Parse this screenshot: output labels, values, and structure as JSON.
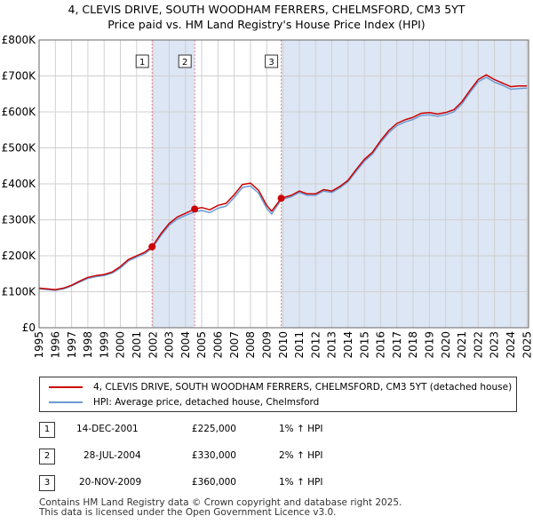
{
  "title_line1": "4, CLEVIS DRIVE, SOUTH WOODHAM FERRERS, CHELMSFORD, CM3 5YT",
  "title_line2": "Price paid vs. HM Land Registry's House Price Index (HPI)",
  "colors": {
    "price_line": "#cc0000",
    "hpi_line": "#6b9ad4",
    "shade": "#dde6f4",
    "vline": "#e88080"
  },
  "chart_data": {
    "type": "line",
    "title": "Price paid vs. HM Land Registry's House Price Index (HPI)",
    "xlabel": "",
    "ylabel": "",
    "xlim": [
      1995,
      2025.1
    ],
    "ylim": [
      0,
      800000
    ],
    "y_ticks": [
      0,
      100000,
      200000,
      300000,
      400000,
      500000,
      600000,
      700000,
      800000
    ],
    "y_tick_labels": [
      "£0",
      "£100K",
      "£200K",
      "£300K",
      "£400K",
      "£500K",
      "£600K",
      "£700K",
      "£800K"
    ],
    "x_ticks": [
      1995,
      1996,
      1997,
      1998,
      1999,
      2000,
      2001,
      2002,
      2003,
      2004,
      2005,
      2006,
      2007,
      2008,
      2009,
      2010,
      2011,
      2012,
      2013,
      2014,
      2015,
      2016,
      2017,
      2018,
      2019,
      2020,
      2021,
      2022,
      2023,
      2024,
      2025
    ],
    "x_tick_labels": [
      "1995",
      "1996",
      "1997",
      "1998",
      "1999",
      "2000",
      "2001",
      "2002",
      "2003",
      "2004",
      "2005",
      "2006",
      "2007",
      "2008",
      "2009",
      "2010",
      "2011",
      "2012",
      "2013",
      "2014",
      "2015",
      "2016",
      "2017",
      "2018",
      "2019",
      "2020",
      "2021",
      "2022",
      "2023",
      "2024",
      "2025"
    ],
    "grid": true,
    "shaded_ranges": [
      [
        2001.95,
        2004.57
      ],
      [
        2009.89,
        2025.1
      ]
    ],
    "series": [
      {
        "name": "4, CLEVIS DRIVE, SOUTH WOODHAM FERRERS, CHELMSFORD, CM3 5YT (detached house)",
        "x": [
          1995,
          1995.5,
          1996,
          1996.5,
          1997,
          1997.5,
          1998,
          1998.5,
          1999,
          1999.5,
          2000,
          2000.5,
          2001,
          2001.5,
          2001.95,
          2002.5,
          2003,
          2003.5,
          2004,
          2004.57,
          2005,
          2005.5,
          2006,
          2006.5,
          2007,
          2007.5,
          2008,
          2008.5,
          2009,
          2009.3,
          2009.89,
          2010.5,
          2011,
          2011.5,
          2012,
          2012.5,
          2013,
          2013.5,
          2014,
          2014.5,
          2015,
          2015.5,
          2016,
          2016.5,
          2017,
          2017.5,
          2018,
          2018.5,
          2019,
          2019.5,
          2020,
          2020.5,
          2021,
          2021.5,
          2022,
          2022.5,
          2023,
          2023.5,
          2024,
          2024.5,
          2025
        ],
        "y": [
          110000,
          108000,
          106000,
          110000,
          118000,
          130000,
          140000,
          145000,
          148000,
          155000,
          170000,
          190000,
          200000,
          210000,
          225000,
          262000,
          290000,
          308000,
          318000,
          330000,
          334000,
          328000,
          340000,
          346000,
          370000,
          398000,
          402000,
          382000,
          340000,
          324000,
          360000,
          368000,
          380000,
          372000,
          372000,
          384000,
          380000,
          393000,
          410000,
          440000,
          468000,
          488000,
          520000,
          548000,
          568000,
          578000,
          585000,
          596000,
          598000,
          594000,
          598000,
          606000,
          628000,
          660000,
          690000,
          703000,
          690000,
          680000,
          670000,
          672000,
          672000
        ]
      },
      {
        "name": "HPI: Average price, detached house, Chelmsford",
        "x": [
          1995,
          1995.5,
          1996,
          1996.5,
          1997,
          1997.5,
          1998,
          1998.5,
          1999,
          1999.5,
          2000,
          2000.5,
          2001,
          2001.5,
          2001.95,
          2002.5,
          2003,
          2003.5,
          2004,
          2004.57,
          2005,
          2005.5,
          2006,
          2006.5,
          2007,
          2007.5,
          2008,
          2008.5,
          2009,
          2009.3,
          2009.89,
          2010.5,
          2011,
          2011.5,
          2012,
          2012.5,
          2013,
          2013.5,
          2014,
          2014.5,
          2015,
          2015.5,
          2016,
          2016.5,
          2017,
          2017.5,
          2018,
          2018.5,
          2019,
          2019.5,
          2020,
          2020.5,
          2021,
          2021.5,
          2022,
          2022.5,
          2023,
          2023.5,
          2024,
          2024.5,
          2025
        ],
        "y": [
          108000,
          106000,
          104000,
          108000,
          116000,
          127000,
          137000,
          142000,
          145000,
          152000,
          166000,
          186000,
          196000,
          206000,
          221000,
          257000,
          285000,
          302000,
          312000,
          322000,
          326000,
          320000,
          332000,
          338000,
          362000,
          390000,
          394000,
          374000,
          332000,
          316000,
          356000,
          364000,
          376000,
          368000,
          368000,
          380000,
          376000,
          389000,
          406000,
          435000,
          463000,
          483000,
          515000,
          542000,
          562000,
          572000,
          579000,
          590000,
          592000,
          588000,
          592000,
          600000,
          622000,
          654000,
          684000,
          696000,
          683000,
          674000,
          663000,
          665000,
          666000
        ]
      }
    ],
    "annotations": [
      {
        "label": "1",
        "x": 2001.95,
        "y": 225000
      },
      {
        "label": "2",
        "x": 2004.57,
        "y": 330000
      },
      {
        "label": "3",
        "x": 2009.89,
        "y": 360000
      }
    ]
  },
  "legend": {
    "price_label": "4, CLEVIS DRIVE, SOUTH WOODHAM FERRERS, CHELMSFORD, CM3 5YT (detached house)",
    "hpi_label": "HPI: Average price, detached house, Chelmsford"
  },
  "transactions": [
    {
      "num": "1",
      "date": "14-DEC-2001",
      "price": "£225,000",
      "hpi": "1% ↑ HPI"
    },
    {
      "num": "2",
      "date": "28-JUL-2004",
      "price": "£330,000",
      "hpi": "2% ↑ HPI"
    },
    {
      "num": "3",
      "date": "20-NOV-2009",
      "price": "£360,000",
      "hpi": "1% ↑ HPI"
    }
  ],
  "footer_line1": "Contains HM Land Registry data © Crown copyright and database right 2025.",
  "footer_line2": "This data is licensed under the Open Government Licence v3.0."
}
